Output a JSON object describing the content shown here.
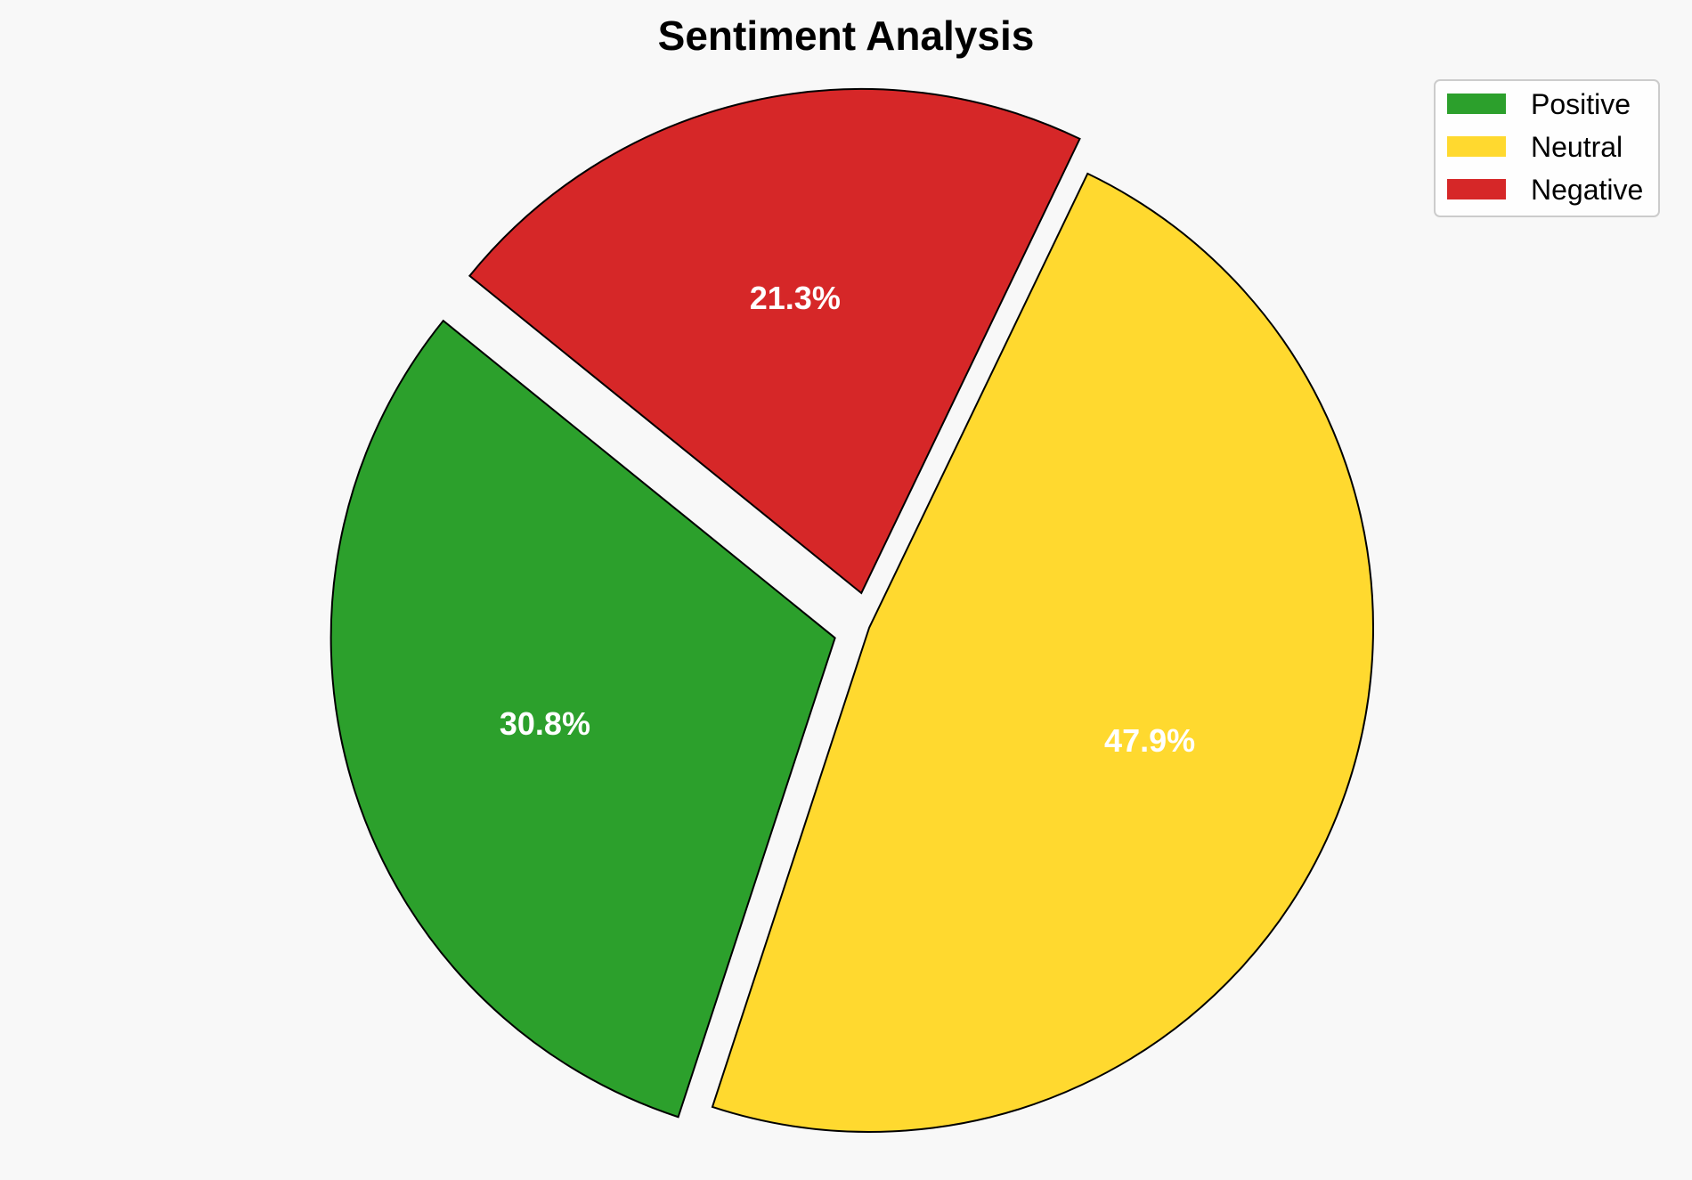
{
  "chart_data": {
    "type": "pie",
    "title": "Sentiment Analysis",
    "categories": [
      "Positive",
      "Neutral",
      "Negative"
    ],
    "values": [
      30.8,
      47.9,
      21.3
    ],
    "labels": [
      "30.8%",
      "47.9%",
      "21.3%"
    ],
    "colors": [
      "#2ca02c",
      "#ffd92f",
      "#d62728"
    ],
    "exploded": [
      true,
      false,
      true
    ],
    "legend": {
      "position": "top-right",
      "entries": [
        "Positive",
        "Neutral",
        "Negative"
      ]
    }
  }
}
